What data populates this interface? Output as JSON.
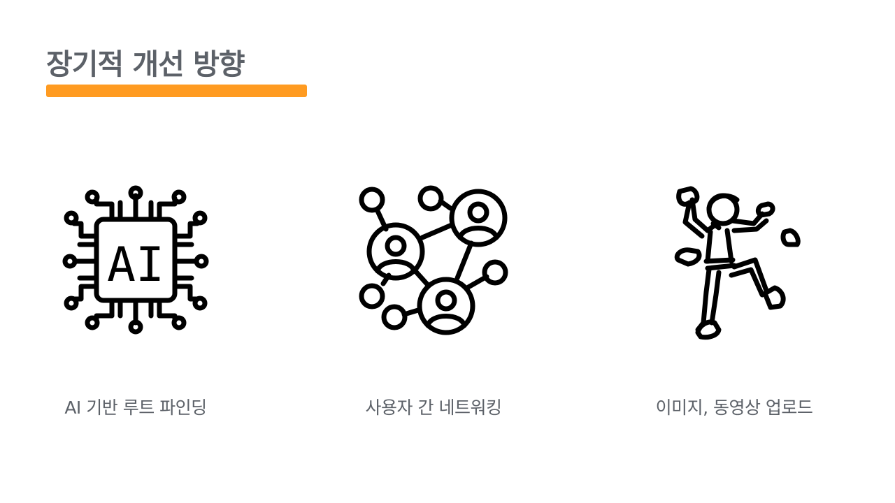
{
  "slide": {
    "title": "장기적 개선 방향",
    "accent_color": "#ff9b21",
    "text_color": "#5c6168"
  },
  "features": [
    {
      "icon": "ai-chip-icon",
      "chip_text": "AI",
      "label": "AI 기반 루트 파인딩"
    },
    {
      "icon": "network-people-icon",
      "label": "사용자 간 네트워킹"
    },
    {
      "icon": "climber-icon",
      "label": "이미지, 동영상 업로드"
    }
  ]
}
